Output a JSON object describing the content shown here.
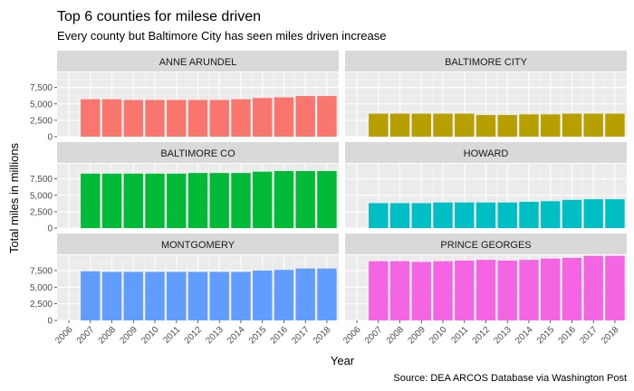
{
  "chart_data": {
    "type": "bar",
    "title": "Top 6 counties for milese driven",
    "subtitle": "Every county but Baltimore City has seen miles driven increase",
    "xlabel": "Year",
    "ylabel": "Total miles in millions",
    "caption": "Source: DEA ARCOS Database via Washington Post",
    "x_ticks": [
      "2006",
      "2007",
      "2008",
      "2009",
      "2010",
      "2011",
      "2012",
      "2013",
      "2014",
      "2015",
      "2016",
      "2017",
      "2018"
    ],
    "y_ticks": [
      "0",
      "2,500",
      "5,000",
      "7,500"
    ],
    "ylim": [
      0,
      9800
    ],
    "categories": [
      "2007",
      "2008",
      "2009",
      "2010",
      "2011",
      "2012",
      "2013",
      "2014",
      "2015",
      "2016",
      "2017",
      "2018"
    ],
    "grid": true,
    "legend": "none",
    "panels": [
      {
        "name": "ANNE ARUNDEL",
        "color": "#F8766D",
        "values": [
          5700,
          5700,
          5600,
          5600,
          5600,
          5600,
          5600,
          5700,
          5900,
          6000,
          6200,
          6200
        ]
      },
      {
        "name": "BALTIMORE CITY",
        "color": "#B79F00",
        "values": [
          3500,
          3500,
          3500,
          3500,
          3500,
          3300,
          3300,
          3400,
          3400,
          3500,
          3500,
          3500
        ]
      },
      {
        "name": "BALTIMORE CO",
        "color": "#00BA38",
        "values": [
          8300,
          8300,
          8300,
          8300,
          8300,
          8400,
          8400,
          8400,
          8600,
          8700,
          8700,
          8700
        ]
      },
      {
        "name": "HOWARD",
        "color": "#00BFC4",
        "values": [
          3800,
          3800,
          3800,
          3900,
          3900,
          3900,
          3900,
          4000,
          4100,
          4300,
          4400,
          4400
        ]
      },
      {
        "name": "MONTGOMERY",
        "color": "#619CFF",
        "values": [
          7400,
          7300,
          7300,
          7300,
          7300,
          7300,
          7300,
          7300,
          7500,
          7600,
          7800,
          7800
        ]
      },
      {
        "name": "PRINCE GEORGES",
        "color": "#F564E3",
        "values": [
          8900,
          8900,
          8800,
          8900,
          9000,
          9100,
          9000,
          9100,
          9300,
          9400,
          9700,
          9700
        ]
      }
    ]
  }
}
